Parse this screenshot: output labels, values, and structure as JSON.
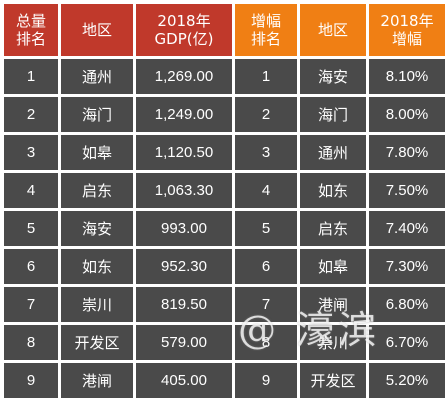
{
  "headers": {
    "gdp_rank": "总量\n排名",
    "region_left": "地区",
    "gdp_value": "2018年\nGDP(亿)",
    "growth_rank": "增幅\n排名",
    "region_right": "地区",
    "growth_rate": "2018年\n增幅"
  },
  "colors": {
    "left_header": "#c0392b",
    "right_header": "#f07f14",
    "cell_bg": "#4a4a4a",
    "text": "#ffffff"
  },
  "rows": [
    {
      "gdp_rank": "1",
      "region_left": "通州",
      "gdp": "1,269.00",
      "growth_rank": "1",
      "region_right": "海安",
      "rate": "8.10%"
    },
    {
      "gdp_rank": "2",
      "region_left": "海门",
      "gdp": "1,249.00",
      "growth_rank": "2",
      "region_right": "海门",
      "rate": "8.00%"
    },
    {
      "gdp_rank": "3",
      "region_left": "如皋",
      "gdp": "1,120.50",
      "growth_rank": "3",
      "region_right": "通州",
      "rate": "7.80%"
    },
    {
      "gdp_rank": "4",
      "region_left": "启东",
      "gdp": "1,063.30",
      "growth_rank": "4",
      "region_right": "如东",
      "rate": "7.50%"
    },
    {
      "gdp_rank": "5",
      "region_left": "海安",
      "gdp": "993.00",
      "growth_rank": "5",
      "region_right": "启东",
      "rate": "7.40%"
    },
    {
      "gdp_rank": "6",
      "region_left": "如东",
      "gdp": "952.30",
      "growth_rank": "6",
      "region_right": "如皋",
      "rate": "7.30%"
    },
    {
      "gdp_rank": "7",
      "region_left": "崇川",
      "gdp": "819.50",
      "growth_rank": "7",
      "region_right": "港闸",
      "rate": "6.80%"
    },
    {
      "gdp_rank": "8",
      "region_left": "开发区",
      "gdp": "579.00",
      "growth_rank": "8",
      "region_right": "崇川",
      "rate": "6.70%"
    },
    {
      "gdp_rank": "9",
      "region_left": "港闸",
      "gdp": "405.00",
      "growth_rank": "9",
      "region_right": "开发区",
      "rate": "5.20%"
    }
  ],
  "watermark": "@ 濠滨"
}
